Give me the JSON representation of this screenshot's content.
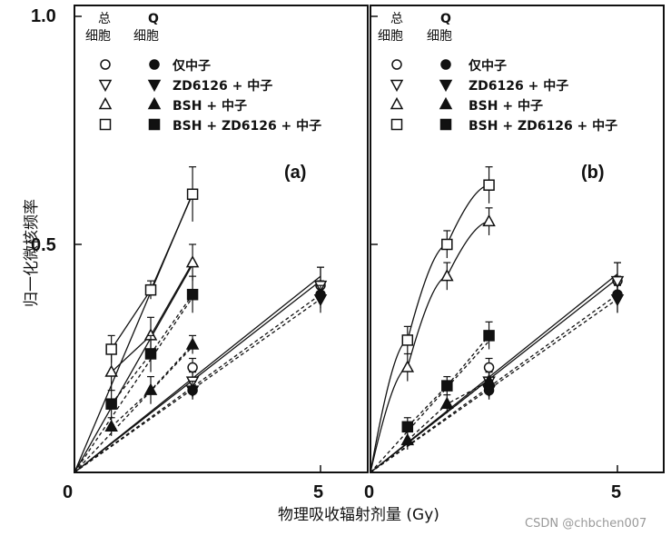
{
  "watermark": "CSDN @chbchen007",
  "chart_data": [
    {
      "type": "line",
      "panel_label": "(a)",
      "ylabel": "归一化微核频率",
      "xlabel": "物理吸收辐射剂量 (Gy)",
      "x_ticks": [
        "0",
        "5"
      ],
      "y_ticks": [
        "1.0",
        "0.5"
      ],
      "xlim": [
        0,
        6.2
      ],
      "ylim": [
        0,
        1.0
      ],
      "legend": {
        "column_headers": [
          "总\n细胞",
          "Q\n细胞"
        ],
        "entries": [
          "仅中子",
          "ZD6126 + 中子",
          "BSH + 中子",
          "BSH + ZD6126 + 中子"
        ]
      },
      "series": [
        {
          "label": "仅中子",
          "population": "总细胞",
          "marker": "circle",
          "filled": false,
          "x": [
            2.4,
            5.0
          ],
          "y": [
            0.23,
            0.41
          ],
          "err": [
            0.02,
            0.04
          ],
          "line": "solid",
          "fit_slope": 0.086
        },
        {
          "label": "仅中子",
          "population": "Q细胞",
          "marker": "circle",
          "filled": true,
          "x": [
            2.4,
            5.0
          ],
          "y": [
            0.18,
            0.39
          ],
          "err": [
            0.02,
            0.03
          ],
          "line": "dashed",
          "fit_slope": 0.078
        },
        {
          "label": "ZD6126 + 中子",
          "population": "总细胞",
          "marker": "triangle-down",
          "filled": false,
          "x": [
            2.4,
            5.0
          ],
          "y": [
            0.2,
            0.41
          ],
          "err": [
            0.02,
            0.04
          ],
          "line": "solid",
          "fit_slope": 0.084
        },
        {
          "label": "ZD6126 + 中子",
          "population": "Q细胞",
          "marker": "triangle-down",
          "filled": true,
          "x": [
            2.4,
            5.0
          ],
          "y": [
            0.18,
            0.38
          ],
          "err": [
            0.02,
            0.03
          ],
          "line": "dashed",
          "fit_slope": 0.076
        },
        {
          "label": "BSH + 中子",
          "population": "总细胞",
          "marker": "triangle-up",
          "filled": false,
          "x": [
            0.75,
            1.55,
            2.4
          ],
          "y": [
            0.22,
            0.3,
            0.46
          ],
          "err": [
            0.04,
            0.04,
            0.04
          ],
          "line": "solid",
          "fit_slope": 0.19
        },
        {
          "label": "BSH + 中子",
          "population": "Q细胞",
          "marker": "triangle-up",
          "filled": true,
          "x": [
            0.75,
            1.55,
            2.4
          ],
          "y": [
            0.1,
            0.18,
            0.28
          ],
          "err": [
            0.02,
            0.03,
            0.02
          ],
          "line": "dashed",
          "fit_slope": 0.115
        },
        {
          "label": "BSH + ZD6126 + 中子",
          "population": "总细胞",
          "marker": "square",
          "filled": false,
          "x": [
            0.75,
            1.55,
            2.4
          ],
          "y": [
            0.27,
            0.4,
            0.61
          ],
          "err": [
            0.03,
            0.02,
            0.06
          ],
          "line": "solid",
          "fit_slope": 0.255
        },
        {
          "label": "BSH + ZD6126 + 中子",
          "population": "Q细胞",
          "marker": "square",
          "filled": true,
          "x": [
            0.75,
            1.55,
            2.4
          ],
          "y": [
            0.15,
            0.26,
            0.39
          ],
          "err": [
            0.03,
            0.04,
            0.04
          ],
          "line": "dashed",
          "fit_slope": 0.16
        }
      ]
    },
    {
      "type": "line",
      "panel_label": "(b)",
      "x_ticks": [
        "0",
        "5"
      ],
      "xlim": [
        0,
        6.2
      ],
      "ylim": [
        0,
        1.0
      ],
      "legend": {
        "column_headers": [
          "总\n细胞",
          "Q\n细胞"
        ],
        "entries": [
          "仅中子",
          "ZD6126 + 中子",
          "BSH + 中子",
          "BSH + ZD6126 + 中子"
        ]
      },
      "series": [
        {
          "label": "仅中子",
          "population": "总细胞",
          "marker": "circle",
          "filled": false,
          "x": [
            2.4,
            5.0
          ],
          "y": [
            0.23,
            0.42
          ],
          "err": [
            0.02,
            0.04
          ],
          "line": "solid",
          "fit_slope": 0.087
        },
        {
          "label": "仅中子",
          "population": "Q细胞",
          "marker": "circle",
          "filled": true,
          "x": [
            2.4,
            5.0
          ],
          "y": [
            0.18,
            0.39
          ],
          "err": [
            0.02,
            0.04
          ],
          "line": "dashed",
          "fit_slope": 0.078
        },
        {
          "label": "ZD6126 + 中子",
          "population": "总细胞",
          "marker": "triangle-down",
          "filled": false,
          "x": [
            2.4,
            5.0
          ],
          "y": [
            0.2,
            0.42
          ],
          "err": [
            0.02,
            0.04
          ],
          "line": "solid",
          "fit_slope": 0.085
        },
        {
          "label": "ZD6126 + 中子",
          "population": "Q细胞",
          "marker": "triangle-down",
          "filled": true,
          "x": [
            2.4,
            5.0
          ],
          "y": [
            0.18,
            0.38
          ],
          "err": [
            0.02,
            0.03
          ],
          "line": "dashed",
          "fit_slope": 0.076
        },
        {
          "label": "BSH + 中子",
          "population": "总细胞",
          "marker": "triangle-up",
          "filled": false,
          "x": [
            0.75,
            1.55,
            2.4
          ],
          "y": [
            0.23,
            0.43,
            0.55
          ],
          "err": [
            0.03,
            0.03,
            0.03
          ],
          "line": "curve"
        },
        {
          "label": "BSH + 中子",
          "population": "Q细胞",
          "marker": "triangle-up",
          "filled": true,
          "x": [
            0.75,
            1.55,
            2.4
          ],
          "y": [
            0.07,
            0.15,
            0.2
          ],
          "err": [
            0.02,
            0.02,
            0.02
          ],
          "line": "dashed",
          "fit_slope": 0.085
        },
        {
          "label": "BSH + ZD6126 + 中子",
          "population": "总细胞",
          "marker": "square",
          "filled": false,
          "x": [
            0.75,
            1.55,
            2.4
          ],
          "y": [
            0.29,
            0.5,
            0.63
          ],
          "err": [
            0.03,
            0.03,
            0.04
          ],
          "line": "curve"
        },
        {
          "label": "BSH + ZD6126 + 中子",
          "population": "Q细胞",
          "marker": "square",
          "filled": true,
          "x": [
            0.75,
            1.55,
            2.4
          ],
          "y": [
            0.1,
            0.19,
            0.3
          ],
          "err": [
            0.02,
            0.02,
            0.03
          ],
          "line": "dashed",
          "fit_slope": 0.12
        }
      ]
    }
  ]
}
